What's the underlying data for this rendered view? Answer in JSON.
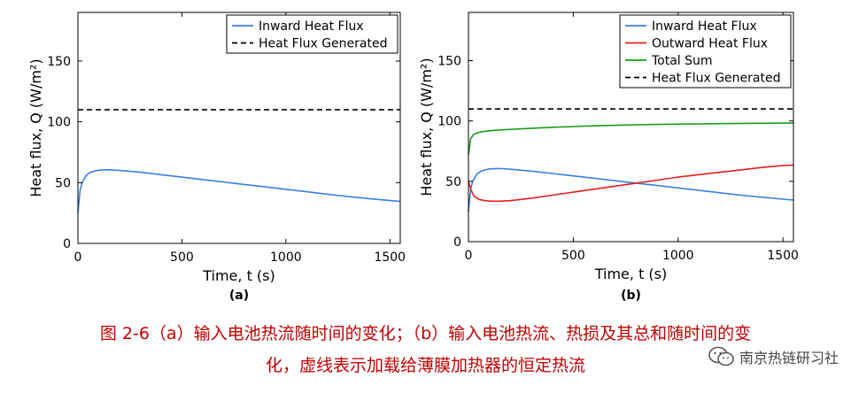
{
  "chart_data": [
    {
      "type": "line",
      "panel_label": "(a)",
      "xlabel": "Time, t (s)",
      "ylabel": "Heat flux, Q (W/m²)",
      "xlim": [
        0,
        1550
      ],
      "ylim": [
        0,
        190
      ],
      "xticks": [
        0,
        500,
        1000,
        1500
      ],
      "yticks": [
        0,
        50,
        100,
        150
      ],
      "legend_position": "top-right",
      "series": [
        {
          "name": "Inward Heat Flux",
          "color": "#3a7fe0",
          "style": "solid",
          "x": [
            0,
            10,
            20,
            40,
            60,
            80,
            100,
            130,
            160,
            200,
            300,
            400,
            500,
            600,
            700,
            800,
            900,
            1000,
            1100,
            1200,
            1300,
            1400,
            1500,
            1550
          ],
          "y": [
            25,
            43,
            50,
            56,
            58.5,
            59.5,
            60.2,
            60.6,
            60.5,
            60.0,
            58.5,
            56.5,
            54.5,
            52.5,
            50.5,
            48.5,
            46.5,
            44.5,
            42.5,
            40.5,
            38.5,
            36.8,
            35.2,
            34.5
          ]
        },
        {
          "name": "Heat Flux Generated",
          "color": "#000000",
          "style": "dashed",
          "x": [
            0,
            1550
          ],
          "y": [
            110,
            110
          ]
        }
      ]
    },
    {
      "type": "line",
      "panel_label": "(b)",
      "xlabel": "Time, t (s)",
      "ylabel": "Heat flux, Q (W/m²)",
      "xlim": [
        0,
        1550
      ],
      "ylim": [
        0,
        190
      ],
      "xticks": [
        0,
        500,
        1000,
        1500
      ],
      "yticks": [
        0,
        50,
        100,
        150
      ],
      "legend_position": "top-right",
      "series": [
        {
          "name": "Inward Heat Flux",
          "color": "#3a7fe0",
          "style": "solid",
          "x": [
            0,
            10,
            20,
            40,
            60,
            80,
            100,
            130,
            160,
            200,
            300,
            400,
            500,
            600,
            700,
            800,
            900,
            1000,
            1100,
            1200,
            1300,
            1400,
            1500,
            1550
          ],
          "y": [
            25,
            43,
            50,
            56,
            58.5,
            59.5,
            60.2,
            60.6,
            60.5,
            60.0,
            58.5,
            56.5,
            54.5,
            52.5,
            50.5,
            48.5,
            46.5,
            44.5,
            42.5,
            40.5,
            38.5,
            36.8,
            35.2,
            34.5
          ]
        },
        {
          "name": "Outward Heat Flux",
          "color": "#e02020",
          "style": "solid",
          "x": [
            0,
            10,
            25,
            50,
            80,
            110,
            150,
            200,
            300,
            400,
            500,
            600,
            700,
            800,
            900,
            1000,
            1100,
            1200,
            1300,
            1400,
            1500,
            1550
          ],
          "y": [
            50,
            44,
            38,
            35,
            34,
            33.5,
            33.5,
            34,
            36,
            38.5,
            41,
            43.5,
            46,
            48.5,
            51,
            53.5,
            55.5,
            57.5,
            59.5,
            61.5,
            63,
            63.5
          ]
        },
        {
          "name": "Total Sum",
          "color": "#1a9a1a",
          "style": "solid",
          "x": [
            0,
            10,
            25,
            50,
            80,
            120,
            200,
            300,
            400,
            500,
            600,
            700,
            800,
            900,
            1000,
            1100,
            1200,
            1300,
            1400,
            1500,
            1550
          ],
          "y": [
            72,
            85,
            89,
            90.5,
            91.5,
            92.2,
            93,
            94,
            94.8,
            95.4,
            96,
            96.4,
            96.8,
            97.1,
            97.4,
            97.6,
            97.8,
            98,
            98.1,
            98.2,
            98.3
          ]
        },
        {
          "name": "Heat Flux Generated",
          "color": "#000000",
          "style": "dashed",
          "x": [
            0,
            1550
          ],
          "y": [
            110,
            110
          ]
        }
      ]
    }
  ],
  "caption": {
    "line1": "图 2-6（a）输入电池热流随时间的变化；（b）输入电池热流、热损及其总和随时间的变",
    "line2": "化，虚线表示加载给薄膜加热器的恒定热流"
  },
  "watermark": {
    "icon": "wechat-icon",
    "text": "南京热链研习社"
  }
}
